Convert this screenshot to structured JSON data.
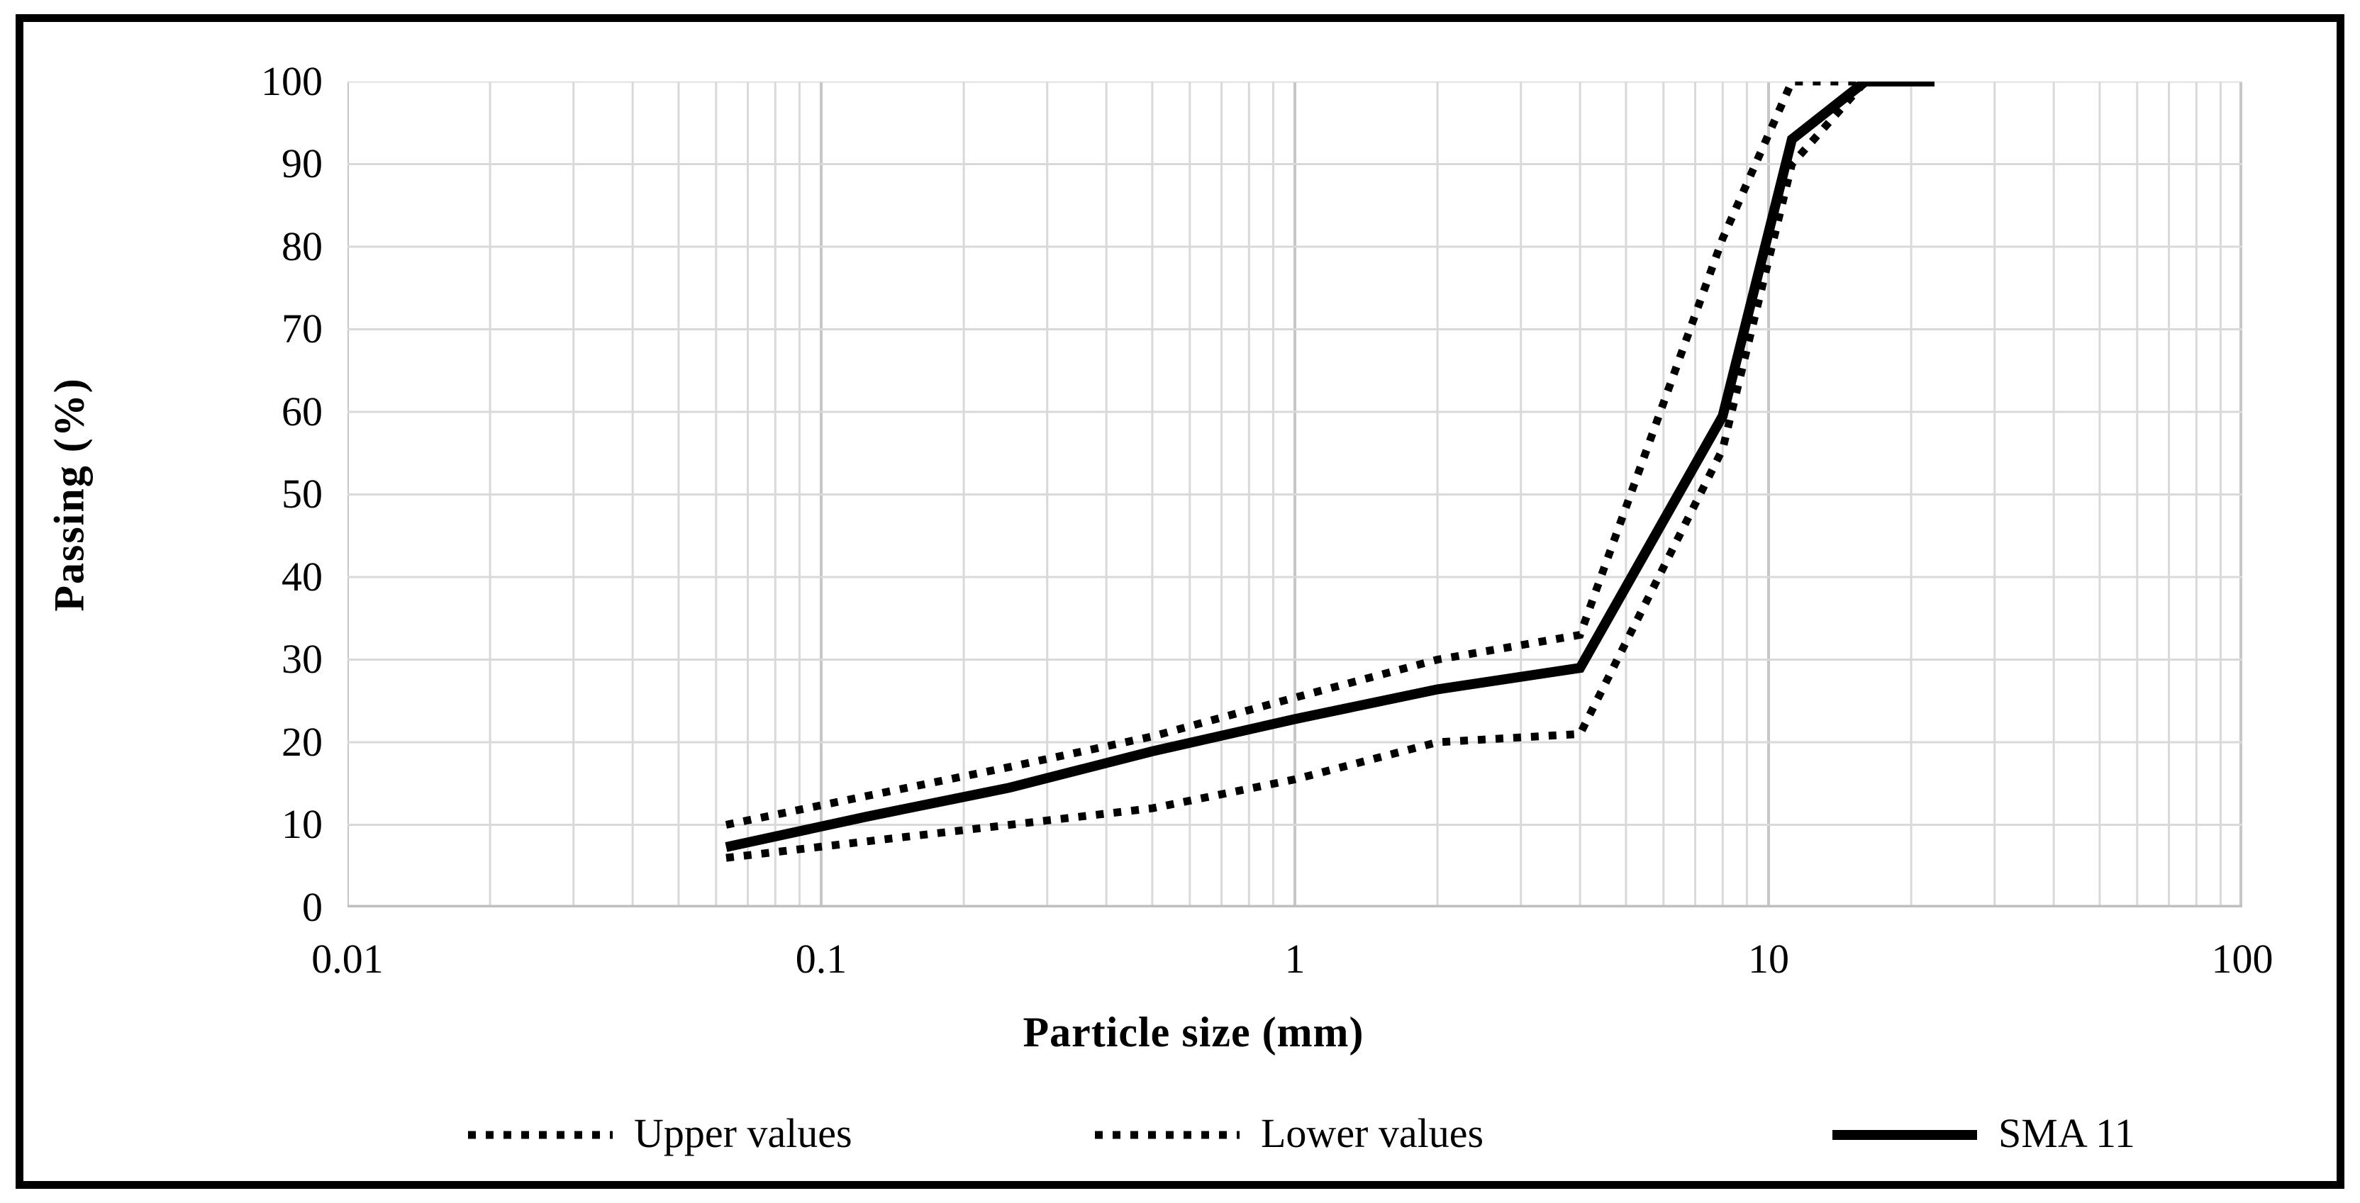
{
  "chart_data": {
    "type": "line",
    "title": "",
    "xlabel": "Particle size (mm)",
    "ylabel": "Passing (%)",
    "x_scale": "log",
    "xlim": [
      0.01,
      100
    ],
    "ylim": [
      0,
      100
    ],
    "grid": true,
    "legend_position": "bottom",
    "x_tick_labels": [
      "0.01",
      "0.1",
      "1",
      "10",
      "100"
    ],
    "y_tick_labels": [
      "100",
      "90",
      "80",
      "70",
      "60",
      "50",
      "40",
      "30",
      "20",
      "10",
      "0"
    ],
    "colors": {
      "line": "#000000",
      "grid_minor": "#d9d9d9",
      "grid_major": "#c6c6c6",
      "axis": "#bfbfbf"
    },
    "series": [
      {
        "name": "Upper values",
        "style": "dotted",
        "x": [
          0.063,
          0.125,
          0.25,
          0.5,
          1,
          2,
          4,
          8,
          11.2,
          16
        ],
        "y": [
          10,
          13.5,
          17,
          20.7,
          25.4,
          30,
          33,
          81,
          100,
          100
        ]
      },
      {
        "name": "Lower values",
        "style": "dotted",
        "x": [
          0.063,
          0.125,
          0.25,
          0.5,
          1,
          2,
          4,
          8,
          11.2,
          16
        ],
        "y": [
          6,
          8,
          10,
          12,
          15.5,
          20,
          21,
          55.5,
          90,
          100
        ]
      },
      {
        "name": "SMA 11",
        "style": "solid",
        "x": [
          0.063,
          0.125,
          0.25,
          0.5,
          1,
          2,
          4,
          8,
          11.2,
          16,
          22.4
        ],
        "y": [
          7.3,
          11,
          14.5,
          18.9,
          22.8,
          26.4,
          29,
          59.5,
          93,
          100,
          100
        ]
      }
    ]
  }
}
